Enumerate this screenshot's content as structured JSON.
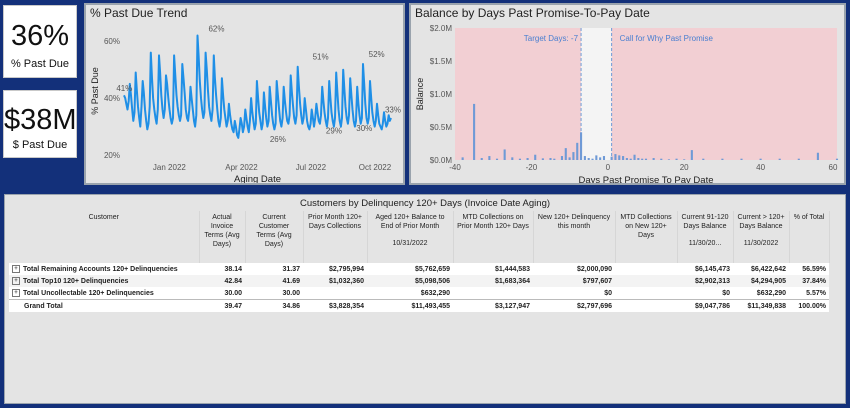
{
  "kpis": [
    {
      "value": "36%",
      "label": "% Past Due"
    },
    {
      "value": "$38M",
      "label": "$ Past Due"
    }
  ],
  "trend": {
    "title": "% Past Due Trend",
    "color": "#1f8fe6",
    "chart_data": {
      "type": "line",
      "title": "% Past Due Trend",
      "xlabel": "Aging Date",
      "ylabel": "% Past Due",
      "ylim": [
        0.2,
        0.65
      ],
      "yticks": [
        "60%",
        "40%",
        "20%"
      ],
      "xticks": [
        "Jan 2022",
        "Apr 2022",
        "Jul 2022",
        "Oct 2022"
      ],
      "annotations": [
        "41%",
        "62%",
        "26%",
        "51%",
        "29%",
        "52%",
        "30%",
        "33%"
      ],
      "values": [
        0.41,
        0.4,
        0.38,
        0.36,
        0.39,
        0.45,
        0.41,
        0.36,
        0.32,
        0.35,
        0.49,
        0.43,
        0.37,
        0.33,
        0.3,
        0.37,
        0.46,
        0.42,
        0.36,
        0.32,
        0.29,
        0.31,
        0.37,
        0.56,
        0.47,
        0.4,
        0.36,
        0.33,
        0.31,
        0.36,
        0.55,
        0.49,
        0.41,
        0.36,
        0.33,
        0.36,
        0.48,
        0.45,
        0.4,
        0.36,
        0.33,
        0.31,
        0.33,
        0.55,
        0.48,
        0.41,
        0.37,
        0.34,
        0.32,
        0.34,
        0.52,
        0.47,
        0.42,
        0.36,
        0.33,
        0.32,
        0.36,
        0.44,
        0.4,
        0.36,
        0.32,
        0.3,
        0.34,
        0.62,
        0.55,
        0.46,
        0.4,
        0.36,
        0.33,
        0.35,
        0.56,
        0.5,
        0.43,
        0.37,
        0.34,
        0.32,
        0.36,
        0.55,
        0.47,
        0.41,
        0.36,
        0.32,
        0.3,
        0.33,
        0.47,
        0.41,
        0.36,
        0.33,
        0.3,
        0.32,
        0.38,
        0.34,
        0.31,
        0.29,
        0.28,
        0.32,
        0.3,
        0.27,
        0.26,
        0.29,
        0.33,
        0.31,
        0.28,
        0.3,
        0.36,
        0.33,
        0.3,
        0.28,
        0.32,
        0.4,
        0.35,
        0.32,
        0.29,
        0.31,
        0.46,
        0.4,
        0.35,
        0.32,
        0.29,
        0.31,
        0.42,
        0.37,
        0.33,
        0.3,
        0.32,
        0.44,
        0.39,
        0.34,
        0.31,
        0.29,
        0.31,
        0.46,
        0.41,
        0.36,
        0.32,
        0.3,
        0.33,
        0.44,
        0.39,
        0.35,
        0.32,
        0.31,
        0.34,
        0.48,
        0.42,
        0.37,
        0.33,
        0.31,
        0.34,
        0.51,
        0.44,
        0.38,
        0.34,
        0.31,
        0.33,
        0.4,
        0.36,
        0.32,
        0.3,
        0.29,
        0.31,
        0.36,
        0.33,
        0.3,
        0.33,
        0.38,
        0.35,
        0.32,
        0.31,
        0.34,
        0.44,
        0.39,
        0.35,
        0.32,
        0.3,
        0.33,
        0.46,
        0.4,
        0.35,
        0.32,
        0.3,
        0.33,
        0.49,
        0.42,
        0.36,
        0.32,
        0.3,
        0.33,
        0.5,
        0.43,
        0.37,
        0.33,
        0.31,
        0.34,
        0.47,
        0.41,
        0.36,
        0.32,
        0.3,
        0.32,
        0.44,
        0.38,
        0.34,
        0.31,
        0.33,
        0.52,
        0.45,
        0.38,
        0.33,
        0.31,
        0.33,
        0.46,
        0.4,
        0.35,
        0.32,
        0.3,
        0.32,
        0.38,
        0.34,
        0.31,
        0.3,
        0.29,
        0.31,
        0.35,
        0.32,
        0.3,
        0.31,
        0.34,
        0.32,
        0.33
      ]
    }
  },
  "balance": {
    "title": "Balance by Days Past Promise-To-Pay Date",
    "bar_color": "#6f9ad6",
    "zone_color": "#f2cfd3",
    "target_label": "Target Days: -7",
    "call_label": "Call for Why Past Promise",
    "chart_data": {
      "type": "bar",
      "title": "Balance by Days Past Promise-To-Pay Date",
      "xlabel": "Days Past Promise To Pay Date",
      "ylabel": "Balance",
      "xlim": [
        -40,
        60
      ],
      "ylim": [
        0,
        2000000
      ],
      "xticks": [
        "-40",
        "-20",
        "0",
        "20",
        "40",
        "60"
      ],
      "yticks": [
        "$2.0M",
        "$1.5M",
        "$1.0M",
        "$0.5M",
        "$0.0M"
      ],
      "x": [
        -38,
        -35,
        -33,
        -31,
        -29,
        -27,
        -25,
        -23,
        -21,
        -19,
        -17,
        -15,
        -14,
        -12,
        -11,
        -10,
        -9,
        -8,
        -7,
        -6,
        -5,
        -4,
        -3,
        -2,
        -1,
        1,
        2,
        3,
        4,
        5,
        6,
        7,
        8,
        9,
        10,
        12,
        14,
        16,
        18,
        20,
        22,
        25,
        30,
        35,
        40,
        45,
        50,
        55,
        60
      ],
      "values": [
        40000,
        850000,
        30000,
        60000,
        20000,
        160000,
        40000,
        20000,
        30000,
        80000,
        25000,
        30000,
        20000,
        60000,
        180000,
        40000,
        120000,
        260000,
        420000,
        60000,
        30000,
        20000,
        70000,
        40000,
        60000,
        50000,
        90000,
        70000,
        60000,
        30000,
        20000,
        80000,
        30000,
        20000,
        20000,
        30000,
        20000,
        10000,
        20000,
        10000,
        150000,
        20000,
        20000,
        20000,
        20000,
        20000,
        20000,
        110000,
        20000
      ]
    }
  },
  "table": {
    "title": "Customers by Delinquency 120+ Days (Invoice Date Aging)",
    "columns": [
      {
        "label": "Customer",
        "sub": ""
      },
      {
        "label": "Actual Invoice Terms (Avg Days)",
        "sub": ""
      },
      {
        "label": "Current Customer Terms (Avg Days)",
        "sub": ""
      },
      {
        "label": "Prior Month 120+ Days Collections",
        "sub": ""
      },
      {
        "label": "Aged 120+ Balance to End of Prior Month",
        "sub": "10/31/2022"
      },
      {
        "label": "MTD Collections on Prior Month 120+ Days",
        "sub": ""
      },
      {
        "label": "New 120+ Delinquency this month",
        "sub": ""
      },
      {
        "label": "MTD Collections on New 120+ Days",
        "sub": ""
      },
      {
        "label": "Current 91-120 Days Balance",
        "sub": "11/30/20..."
      },
      {
        "label": "Current > 120+ Days Balance",
        "sub": "11/30/2022"
      },
      {
        "label": "% of Total",
        "sub": ""
      }
    ],
    "rows": [
      {
        "customer": "Total Remaining Accounts 120+ Delinquencies",
        "cells": [
          "38.14",
          "31.37",
          "$2,795,994",
          "$5,762,659",
          "$1,444,583",
          "$2,000,090",
          "",
          "$6,145,473",
          "$6,422,642",
          "56.59%"
        ]
      },
      {
        "customer": "Total Top10 120+ Delinquencies",
        "cells": [
          "42.84",
          "41.69",
          "$1,032,360",
          "$5,098,506",
          "$1,683,364",
          "$797,607",
          "",
          "$2,902,313",
          "$4,294,905",
          "37.84%"
        ]
      },
      {
        "customer": "Total Uncollectable 120+ Delinquencies",
        "cells": [
          "30.00",
          "30.00",
          "",
          "$632,290",
          "",
          "$0",
          "",
          "$0",
          "$632,290",
          "5.57%"
        ]
      }
    ],
    "total": {
      "customer": "Grand Total",
      "cells": [
        "39.47",
        "34.86",
        "$3,828,354",
        "$11,493,455",
        "$3,127,947",
        "$2,797,696",
        "",
        "$9,047,786",
        "$11,349,838",
        "100.00%"
      ]
    }
  }
}
